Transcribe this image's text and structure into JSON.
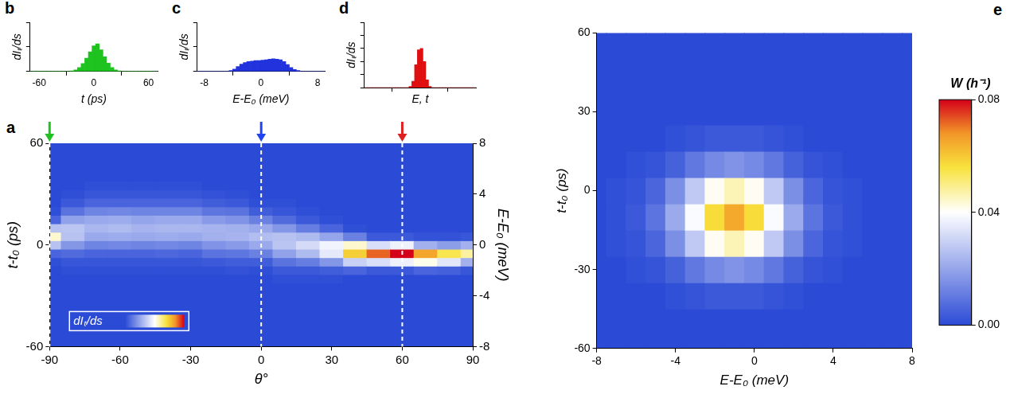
{
  "chart_data": [
    {
      "panel": "b",
      "type": "histogram",
      "x_label": "t (ps)",
      "y_label": "dIₜ/ds",
      "color": "#1fc31f",
      "bins": [
        -70,
        -66,
        -62,
        -58,
        -54,
        -50,
        -46,
        -42,
        -38,
        -34,
        -30,
        -26,
        -22,
        -18,
        -14,
        -10,
        -6,
        -2,
        2,
        6,
        10,
        14,
        18,
        22,
        26,
        30,
        34,
        38,
        42,
        46,
        50,
        54,
        58,
        62,
        66,
        70
      ],
      "values": [
        0,
        0,
        0,
        0,
        0,
        0,
        0,
        0,
        0,
        0,
        0,
        0.01,
        0.03,
        0.08,
        0.16,
        0.27,
        0.4,
        0.52,
        0.56,
        0.44,
        0.3,
        0.17,
        0.08,
        0.03,
        0.01,
        0,
        0,
        0,
        0,
        0,
        0,
        0,
        0,
        0,
        0
      ],
      "xlim": [
        -70,
        70
      ],
      "xticks": [
        -60,
        0,
        60
      ],
      "ylim": [
        0,
        1
      ],
      "tick_labels": "x",
      "grid": false
    },
    {
      "panel": "c",
      "type": "histogram",
      "x_label": "E-E₀ (meV)",
      "y_label": "dIₜ/ds",
      "color": "#2233dd",
      "bins": [
        -9,
        -8.5,
        -8,
        -7.5,
        -7,
        -6.5,
        -6,
        -5.5,
        -5,
        -4.5,
        -4,
        -3.5,
        -3,
        -2.5,
        -2,
        -1.5,
        -1,
        -0.5,
        0,
        0.5,
        1,
        1.5,
        2,
        2.5,
        3,
        3.5,
        4,
        4.5,
        5,
        5.5,
        6,
        6.5,
        7,
        7.5,
        8,
        8.5,
        9
      ],
      "values": [
        0,
        0,
        0,
        0,
        0,
        0,
        0,
        0,
        0,
        0.02,
        0.05,
        0.1,
        0.15,
        0.18,
        0.2,
        0.21,
        0.22,
        0.22,
        0.23,
        0.24,
        0.25,
        0.26,
        0.25,
        0.24,
        0.2,
        0.14,
        0.08,
        0.04,
        0.02,
        0,
        0,
        0,
        0,
        0,
        0,
        0
      ],
      "xlim": [
        -9,
        9
      ],
      "xticks": [
        -8,
        0,
        8
      ],
      "ylim": [
        0,
        1
      ],
      "tick_labels": "x",
      "grid": false
    },
    {
      "panel": "d",
      "type": "histogram",
      "x_label": "E, t",
      "y_label": "dIₜ/ds",
      "color": "#e01010",
      "bins": [
        -1,
        -0.95,
        -0.9,
        -0.85,
        -0.8,
        -0.75,
        -0.7,
        -0.65,
        -0.6,
        -0.55,
        -0.5,
        -0.45,
        -0.4,
        -0.35,
        -0.3,
        -0.25,
        -0.2,
        -0.15,
        -0.1,
        -0.05,
        0,
        0.05,
        0.1,
        0.15,
        0.2,
        0.25,
        0.3,
        0.35,
        0.4,
        0.45,
        0.5,
        0.55,
        0.6,
        0.65,
        0.7,
        0.75,
        0.8,
        0.85,
        0.9,
        0.95,
        1
      ],
      "values": [
        0,
        0,
        0,
        0,
        0,
        0,
        0,
        0,
        0,
        0,
        0,
        0,
        0,
        0,
        0,
        0,
        0.02,
        0.1,
        0.35,
        0.58,
        0.6,
        0.4,
        0.12,
        0.02,
        0,
        0,
        0,
        0,
        0,
        0,
        0,
        0,
        0,
        0,
        0,
        0,
        0,
        0,
        0,
        0
      ],
      "xlim": [
        -1,
        1
      ],
      "ylim": [
        0,
        1
      ],
      "tick_labels": false,
      "grid": false
    },
    {
      "panel": "a",
      "type": "heatmap",
      "x_label": "θ°",
      "y_label": "t-t₀ (ps)",
      "y2_label": "E-E₀ (meV)",
      "x": [
        -90,
        -80,
        -70,
        -60,
        -50,
        -40,
        -30,
        -20,
        -10,
        0,
        10,
        20,
        30,
        40,
        50,
        60,
        70,
        80,
        90
      ],
      "y": [
        -60,
        -55,
        -50,
        -45,
        -40,
        -35,
        -30,
        -25,
        -20,
        -15,
        -10,
        -5,
        0,
        5,
        10,
        15,
        20,
        25,
        30,
        35,
        40,
        45,
        50,
        55,
        60
      ],
      "cells": [
        [
          0,
          0,
          0,
          0,
          0,
          0,
          0,
          0,
          0,
          0,
          0.01,
          0.07,
          0.33,
          0.55,
          0.33,
          0.07,
          0.01,
          0,
          0,
          0,
          0,
          0,
          0,
          0,
          0
        ],
        [
          0,
          0,
          0,
          0,
          0,
          0,
          0,
          0,
          0,
          0.01,
          0.03,
          0.09,
          0.21,
          0.33,
          0.34,
          0.24,
          0.11,
          0.04,
          0.01,
          0,
          0,
          0,
          0,
          0,
          0
        ],
        [
          0,
          0,
          0,
          0,
          0,
          0,
          0,
          0,
          0,
          0.01,
          0.03,
          0.07,
          0.16,
          0.26,
          0.3,
          0.26,
          0.16,
          0.07,
          0.03,
          0.01,
          0,
          0,
          0,
          0,
          0
        ],
        [
          0,
          0,
          0,
          0,
          0,
          0,
          0,
          0,
          0,
          0.01,
          0.03,
          0.07,
          0.17,
          0.27,
          0.31,
          0.27,
          0.17,
          0.07,
          0.03,
          0.01,
          0,
          0,
          0,
          0,
          0
        ],
        [
          0,
          0,
          0,
          0,
          0,
          0,
          0,
          0,
          0,
          0.01,
          0.03,
          0.07,
          0.16,
          0.26,
          0.29,
          0.25,
          0.16,
          0.07,
          0.03,
          0.01,
          0,
          0,
          0,
          0,
          0
        ],
        [
          0,
          0,
          0,
          0,
          0,
          0,
          0,
          0,
          0,
          0.01,
          0.03,
          0.08,
          0.17,
          0.27,
          0.3,
          0.26,
          0.16,
          0.07,
          0.03,
          0.01,
          0,
          0,
          0,
          0,
          0
        ],
        [
          0,
          0,
          0,
          0,
          0,
          0,
          0,
          0,
          0,
          0.01,
          0.03,
          0.07,
          0.16,
          0.26,
          0.3,
          0.26,
          0.16,
          0.07,
          0.03,
          0.01,
          0,
          0,
          0,
          0,
          0
        ],
        [
          0,
          0,
          0,
          0,
          0,
          0,
          0,
          0,
          0,
          0.01,
          0.04,
          0.11,
          0.2,
          0.28,
          0.29,
          0.22,
          0.12,
          0.05,
          0.02,
          0,
          0,
          0,
          0,
          0,
          0
        ],
        [
          0,
          0,
          0,
          0,
          0,
          0,
          0,
          0,
          0,
          0.02,
          0.05,
          0.12,
          0.22,
          0.29,
          0.28,
          0.2,
          0.11,
          0.04,
          0.01,
          0,
          0,
          0,
          0,
          0,
          0
        ],
        [
          0,
          0,
          0,
          0,
          0,
          0,
          0,
          0,
          0,
          0.01,
          0.05,
          0.15,
          0.26,
          0.32,
          0.26,
          0.15,
          0.05,
          0.01,
          0,
          0,
          0,
          0,
          0,
          0,
          0
        ],
        [
          0,
          0,
          0,
          0,
          0,
          0,
          0,
          0,
          0.01,
          0.04,
          0.11,
          0.24,
          0.34,
          0.33,
          0.21,
          0.09,
          0.03,
          0.01,
          0,
          0,
          0,
          0,
          0,
          0,
          0
        ],
        [
          0,
          0,
          0,
          0,
          0,
          0,
          0,
          0,
          0.01,
          0.04,
          0.14,
          0.31,
          0.4,
          0.31,
          0.14,
          0.04,
          0.01,
          0,
          0,
          0,
          0,
          0,
          0,
          0,
          0
        ],
        [
          0,
          0,
          0,
          0,
          0,
          0,
          0,
          0,
          0.01,
          0.05,
          0.21,
          0.44,
          0.47,
          0.25,
          0.07,
          0.01,
          0,
          0,
          0,
          0,
          0,
          0,
          0,
          0,
          0
        ],
        [
          0,
          0,
          0,
          0,
          0,
          0,
          0,
          0,
          0,
          0.07,
          0.37,
          0.74,
          0.55,
          0.15,
          0.01,
          0,
          0,
          0,
          0,
          0,
          0,
          0,
          0,
          0,
          0
        ],
        [
          0,
          0,
          0,
          0,
          0,
          0,
          0,
          0,
          0,
          0.04,
          0.41,
          0.9,
          0.41,
          0.04,
          0,
          0,
          0,
          0,
          0,
          0,
          0,
          0,
          0,
          0,
          0
        ],
        [
          0,
          0,
          0,
          0,
          0,
          0,
          0,
          0,
          0,
          0.04,
          0.46,
          1,
          0.46,
          0.04,
          0,
          0,
          0,
          0,
          0,
          0,
          0,
          0,
          0,
          0,
          0
        ],
        [
          0,
          0,
          0,
          0,
          0,
          0,
          0,
          0,
          0,
          0.07,
          0.52,
          0.82,
          0.28,
          0.02,
          0,
          0,
          0,
          0,
          0,
          0,
          0,
          0,
          0,
          0,
          0
        ],
        [
          0,
          0,
          0,
          0,
          0,
          0,
          0,
          0,
          0,
          0.06,
          0.43,
          0.68,
          0.23,
          0.02,
          0,
          0,
          0,
          0,
          0,
          0,
          0,
          0,
          0,
          0,
          0
        ],
        [
          0,
          0,
          0,
          0,
          0,
          0,
          0,
          0,
          0,
          0.03,
          0.28,
          0.6,
          0.28,
          0.03,
          0,
          0,
          0,
          0,
          0,
          0,
          0,
          0,
          0,
          0,
          0
        ]
      ],
      "xlim": [
        -90,
        90
      ],
      "xticks": [
        -90,
        -60,
        -30,
        0,
        30,
        60,
        90
      ],
      "ylim": [
        -60,
        60
      ],
      "yticks": [
        -60,
        0,
        60
      ],
      "y2lim": [
        -8,
        8
      ],
      "y2ticks": [
        -8,
        -4,
        0,
        4,
        8
      ],
      "colorbar": {
        "label": "dIₜ/ds",
        "range": [
          0,
          1
        ]
      },
      "markers": [
        {
          "x": -90,
          "color": "#22c022"
        },
        {
          "x": 0,
          "color": "#2244ee"
        },
        {
          "x": 60,
          "color": "#e02020"
        }
      ],
      "grid": false
    },
    {
      "panel": "e",
      "type": "heatmap",
      "x_label": "E-E₀ (meV)",
      "y_label": "t-t₀ (ps)",
      "x": [
        -8,
        -7,
        -6,
        -5,
        -4,
        -3,
        -2,
        -1,
        0,
        1,
        2,
        3,
        4,
        5,
        6,
        7,
        8
      ],
      "y": [
        -60,
        -50,
        -40,
        -30,
        -20,
        -10,
        0,
        10,
        20,
        30,
        40,
        50,
        60
      ],
      "cells": [
        [
          0,
          0,
          0,
          0,
          0,
          0,
          0,
          0,
          0,
          0,
          0,
          0,
          0
        ],
        [
          0,
          0,
          0,
          0,
          0.001,
          0.001,
          0.001,
          0,
          0,
          0,
          0,
          0,
          0
        ],
        [
          0,
          0,
          0,
          0.001,
          0.002,
          0.003,
          0.002,
          0.001,
          0,
          0,
          0,
          0,
          0
        ],
        [
          0,
          0,
          0,
          0.002,
          0.006,
          0.009,
          0.006,
          0.002,
          0,
          0,
          0,
          0,
          0
        ],
        [
          0,
          0,
          0.001,
          0.005,
          0.015,
          0.021,
          0.015,
          0.005,
          0.001,
          0,
          0,
          0,
          0
        ],
        [
          0,
          0,
          0.002,
          0.01,
          0.028,
          0.039,
          0.028,
          0.01,
          0.002,
          0,
          0,
          0,
          0
        ],
        [
          0,
          0,
          0.003,
          0.014,
          0.041,
          0.057,
          0.041,
          0.014,
          0.003,
          0,
          0,
          0,
          0
        ],
        [
          0,
          0,
          0.003,
          0.016,
          0.046,
          0.065,
          0.046,
          0.016,
          0.003,
          0,
          0,
          0,
          0
        ],
        [
          0,
          0,
          0.003,
          0.014,
          0.041,
          0.057,
          0.041,
          0.014,
          0.003,
          0,
          0,
          0,
          0
        ],
        [
          0,
          0,
          0.002,
          0.01,
          0.028,
          0.039,
          0.028,
          0.01,
          0.002,
          0,
          0,
          0,
          0
        ],
        [
          0,
          0,
          0.001,
          0.005,
          0.015,
          0.021,
          0.015,
          0.005,
          0.001,
          0,
          0,
          0,
          0
        ],
        [
          0,
          0,
          0,
          0.002,
          0.006,
          0.009,
          0.006,
          0.002,
          0,
          0,
          0,
          0,
          0
        ],
        [
          0,
          0,
          0,
          0.001,
          0.002,
          0.003,
          0.002,
          0.001,
          0,
          0,
          0,
          0,
          0
        ],
        [
          0,
          0,
          0,
          0,
          0.001,
          0.001,
          0.001,
          0,
          0,
          0,
          0,
          0,
          0
        ],
        [
          0,
          0,
          0,
          0,
          0,
          0,
          0,
          0,
          0,
          0,
          0,
          0,
          0
        ],
        [
          0,
          0,
          0,
          0,
          0,
          0,
          0,
          0,
          0,
          0,
          0,
          0,
          0
        ],
        [
          0,
          0,
          0,
          0,
          0,
          0,
          0,
          0,
          0,
          0,
          0,
          0,
          0
        ]
      ],
      "xlim": [
        -8,
        8
      ],
      "xticks": [
        -8,
        -4,
        0,
        4,
        8
      ],
      "ylim": [
        -60,
        60
      ],
      "yticks": [
        -60,
        -30,
        0,
        30,
        60
      ],
      "colorbar": {
        "label": "W (h⁻¹)",
        "range": [
          0,
          0.08
        ],
        "ticks": [
          {
            "value": 0,
            "label": "0.00"
          },
          {
            "value": 0.04,
            "label": "0.04"
          },
          {
            "value": 0.08,
            "label": "0.08"
          }
        ]
      },
      "grid": false
    }
  ]
}
